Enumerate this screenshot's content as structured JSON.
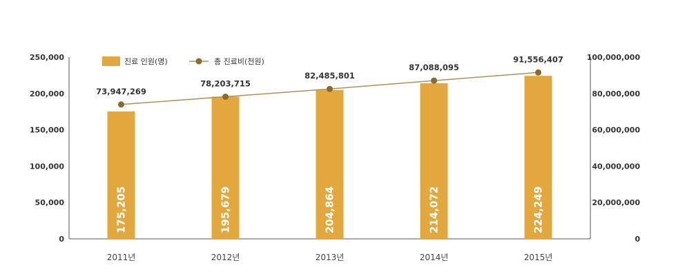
{
  "chart_data": {
    "type": "bar",
    "title": "",
    "xlabel": "",
    "ylabel": "",
    "categories": [
      "2011년",
      "2012년",
      "2013년",
      "2014년",
      "2015년"
    ],
    "ylim": [
      0,
      250000
    ],
    "y_ticks": [
      "0",
      "50,000",
      "100,000",
      "150,000",
      "200,000",
      "250,000"
    ],
    "y2lim": [
      0,
      100000000
    ],
    "y2_ticks": [
      "0",
      "20,000,000",
      "40,000,000",
      "60,000,000",
      "80,000,000",
      "100,000,000"
    ],
    "series": [
      {
        "name": "진료 인원(명)",
        "type": "bar",
        "axis": "left",
        "values": [
          175205,
          195679,
          204864,
          214072,
          224249
        ],
        "labels": [
          "175,205",
          "195,679",
          "204,864",
          "214,072",
          "224,249"
        ]
      },
      {
        "name": "총 진료비(천원)",
        "type": "line",
        "axis": "right",
        "values": [
          73947269,
          78203715,
          82485801,
          87088095,
          91556407
        ],
        "labels": [
          "73,947,269",
          "78,203,715",
          "82,485,801",
          "87,088,095",
          "91,556,407"
        ]
      }
    ],
    "legend_position": "top-left"
  },
  "colors": {
    "bar": "#E2A83D",
    "line": "#A8925A",
    "marker": "#8C6A2C",
    "axis": "#555555"
  }
}
